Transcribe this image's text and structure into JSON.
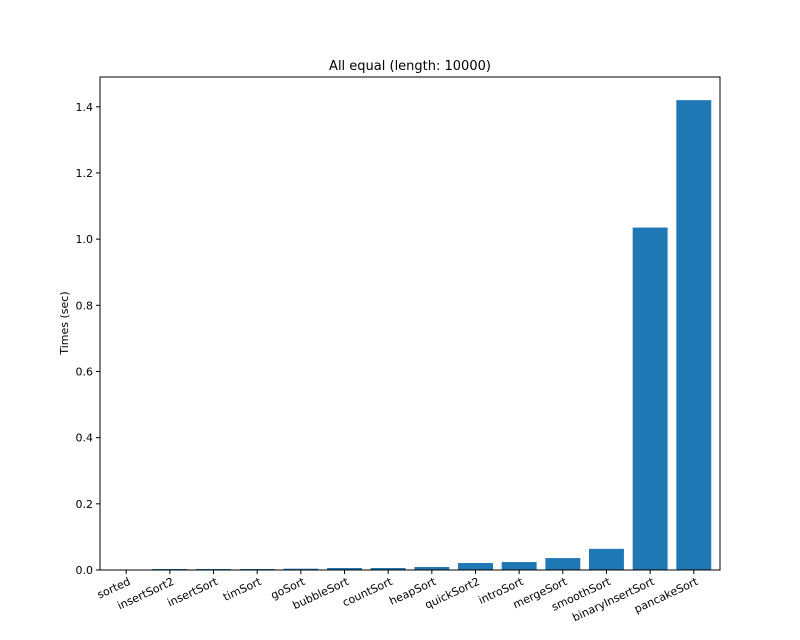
{
  "chart_data": {
    "type": "bar",
    "title": "All equal (length: 10000)",
    "xlabel": "",
    "ylabel": "Times (sec)",
    "ylim": [
      0,
      1.49
    ],
    "yticks": [
      0.0,
      0.2,
      0.4,
      0.6,
      0.8,
      1.0,
      1.2,
      1.4
    ],
    "ytick_labels": [
      "0.0",
      "0.2",
      "0.4",
      "0.6",
      "0.8",
      "1.0",
      "1.2",
      "1.4"
    ],
    "grid": false,
    "bar_color": "#1f77b4",
    "categories": [
      "sorted",
      "insertSort2",
      "insertSort",
      "timSort",
      "goSort",
      "bubbleSort",
      "countSort",
      "heapSort",
      "quickSort2",
      "introSort",
      "mergeSort",
      "smoothSort",
      "binaryInsertSort",
      "pancakeSort"
    ],
    "values": [
      0.0005,
      0.003,
      0.003,
      0.003,
      0.004,
      0.006,
      0.006,
      0.009,
      0.021,
      0.024,
      0.036,
      0.064,
      1.035,
      1.42
    ]
  }
}
